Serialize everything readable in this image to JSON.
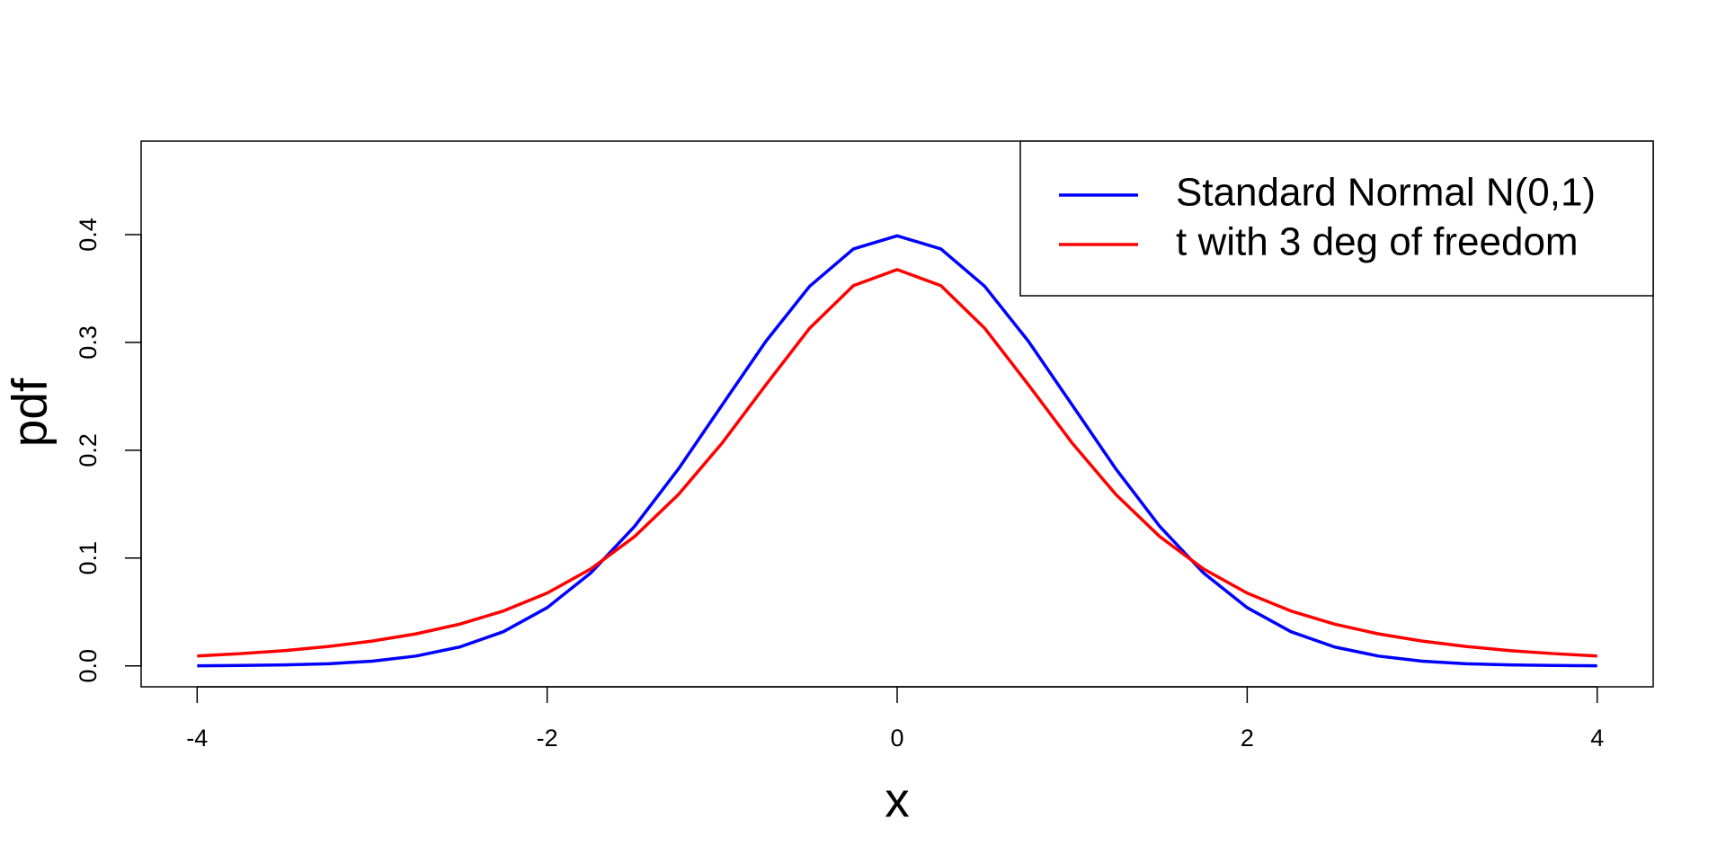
{
  "chart_data": {
    "type": "line",
    "xlabel": "x",
    "ylabel": "pdf",
    "x": [
      -4,
      -3.75,
      -3.5,
      -3.25,
      -3,
      -2.75,
      -2.5,
      -2.25,
      -2,
      -1.75,
      -1.5,
      -1.25,
      -1,
      -0.75,
      -0.5,
      -0.25,
      0,
      0.25,
      0.5,
      0.75,
      1,
      1.25,
      1.5,
      1.75,
      2,
      2.25,
      2.5,
      2.75,
      3,
      3.25,
      3.5,
      3.75,
      4
    ],
    "series": [
      {
        "name": "Standard Normal N(0,1)",
        "color": "#0000ff",
        "values": [
          0.0001,
          0.0004,
          0.0009,
          0.002,
          0.0044,
          0.0091,
          0.0175,
          0.0317,
          0.054,
          0.0863,
          0.1295,
          0.1826,
          0.242,
          0.3011,
          0.3521,
          0.3867,
          0.3989,
          0.3867,
          0.3521,
          0.3011,
          0.242,
          0.1826,
          0.1295,
          0.0863,
          0.054,
          0.0317,
          0.0175,
          0.0091,
          0.0044,
          0.002,
          0.0009,
          0.0004,
          0.0001
        ]
      },
      {
        "name": "t with 3 deg of freedom",
        "color": "#ff0000",
        "values": [
          0.0092,
          0.0114,
          0.0142,
          0.018,
          0.023,
          0.0297,
          0.0387,
          0.0509,
          0.0675,
          0.09,
          0.12,
          0.1589,
          0.2067,
          0.2607,
          0.3132,
          0.3527,
          0.3676,
          0.3527,
          0.3132,
          0.2607,
          0.2067,
          0.1589,
          0.12,
          0.09,
          0.0675,
          0.0509,
          0.0387,
          0.0297,
          0.023,
          0.018,
          0.0142,
          0.0114,
          0.0092
        ]
      }
    ],
    "xlim": [
      -4.32,
      4.32
    ],
    "ylim": [
      -0.0194,
      0.4867
    ],
    "xticks": [
      -4,
      -2,
      0,
      2,
      4
    ],
    "yticks": [
      {
        "value": 0,
        "label": "0.0"
      },
      0.1,
      0.2,
      0.3,
      0.4
    ],
    "legend": "topright"
  }
}
